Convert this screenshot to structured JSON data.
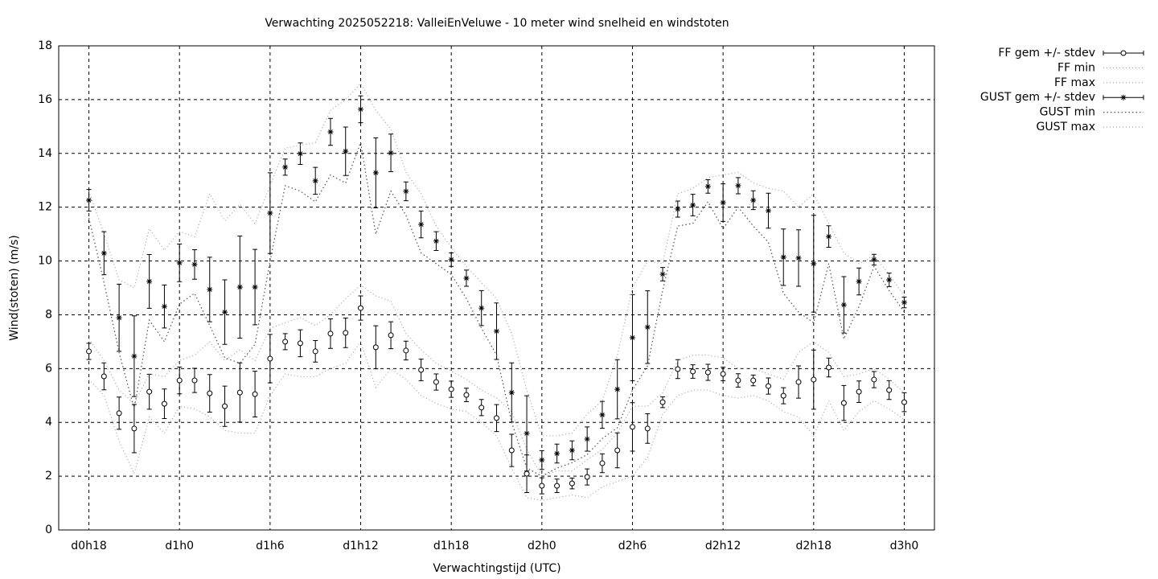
{
  "chart_data": {
    "type": "errorbar",
    "title": "Verwachting 2025052218: ValleiEnVeluwe - 10 meter wind snelheid en windstoten",
    "xlabel": "Verwachtingstijd (UTC)",
    "ylabel": "Wind(stoten) (m/s)",
    "x": [
      0,
      1,
      2,
      3,
      4,
      5,
      6,
      7,
      8,
      9,
      10,
      11,
      12,
      13,
      14,
      15,
      16,
      17,
      18,
      19,
      20,
      21,
      22,
      23,
      24,
      25,
      26,
      27,
      28,
      29,
      30,
      31,
      32,
      33,
      34,
      35,
      36,
      37,
      38,
      39,
      40,
      41,
      42,
      43,
      44,
      45,
      46,
      47,
      48,
      49,
      50,
      51,
      52,
      53,
      54
    ],
    "xlim": [
      -2,
      56
    ],
    "xticks": [
      {
        "value": 0,
        "label": "d0h18"
      },
      {
        "value": 6,
        "label": "d1h0"
      },
      {
        "value": 12,
        "label": "d1h6"
      },
      {
        "value": 18,
        "label": "d1h12"
      },
      {
        "value": 24,
        "label": "d1h18"
      },
      {
        "value": 30,
        "label": "d2h0"
      },
      {
        "value": 36,
        "label": "d2h6"
      },
      {
        "value": 42,
        "label": "d2h12"
      },
      {
        "value": 48,
        "label": "d2h18"
      },
      {
        "value": 54,
        "label": "d3h0"
      }
    ],
    "ylim": [
      0,
      18
    ],
    "yticks": [
      0,
      2,
      4,
      6,
      8,
      10,
      12,
      14,
      16,
      18
    ],
    "grid": true,
    "legend": "right",
    "series": [
      {
        "name": "FF gem +/- stdev",
        "kind": "errorbar",
        "marker": "circle",
        "color": "#000000",
        "values": [
          6.64,
          5.71,
          4.34,
          3.77,
          5.14,
          4.69,
          5.56,
          5.56,
          5.08,
          4.6,
          5.11,
          5.05,
          6.37,
          7.0,
          6.94,
          6.64,
          7.3,
          7.33,
          8.25,
          6.79,
          7.24,
          6.67,
          5.95,
          5.5,
          5.23,
          5.02,
          4.55,
          4.16,
          2.96,
          2.09,
          1.64,
          1.64,
          1.73,
          1.97,
          2.48,
          2.96,
          3.83,
          3.77,
          4.75,
          5.98,
          5.89,
          5.86,
          5.8,
          5.56,
          5.56,
          5.35,
          4.99,
          5.5,
          5.59,
          6.04,
          4.72,
          5.14,
          5.59,
          5.2,
          4.75
        ],
        "errors": [
          0.3,
          0.5,
          0.6,
          0.9,
          0.65,
          0.55,
          0.5,
          0.45,
          0.7,
          0.75,
          1.1,
          0.85,
          0.9,
          0.3,
          0.5,
          0.4,
          0.55,
          0.55,
          0.45,
          0.8,
          0.5,
          0.35,
          0.4,
          0.3,
          0.3,
          0.25,
          0.3,
          0.5,
          0.6,
          0.7,
          0.3,
          0.25,
          0.2,
          0.3,
          0.35,
          0.65,
          0.9,
          0.55,
          0.2,
          0.35,
          0.25,
          0.3,
          0.25,
          0.25,
          0.2,
          0.3,
          0.3,
          0.6,
          1.1,
          0.35,
          0.65,
          0.4,
          0.3,
          0.35,
          0.35
        ]
      },
      {
        "name": "FF min",
        "kind": "line",
        "color": "#a0a0a0",
        "dash": "1 3",
        "values": [
          5.6,
          5.0,
          3.3,
          2.1,
          4.2,
          3.6,
          4.6,
          4.5,
          4.2,
          3.7,
          3.6,
          3.6,
          5.0,
          5.8,
          5.7,
          5.7,
          6.0,
          6.2,
          7.0,
          5.3,
          6.0,
          5.6,
          5.0,
          4.7,
          4.5,
          4.4,
          4.0,
          3.5,
          2.3,
          1.2,
          1.1,
          1.2,
          1.3,
          1.2,
          1.6,
          1.8,
          2.0,
          2.7,
          4.3,
          5.0,
          5.2,
          5.2,
          5.0,
          4.9,
          5.0,
          4.8,
          4.4,
          4.2,
          3.5,
          4.8,
          3.7,
          4.4,
          4.8,
          4.5,
          4.1
        ]
      },
      {
        "name": "FF max",
        "kind": "line",
        "color": "#a0a0a0",
        "dash": "1 3",
        "values": [
          7.1,
          6.3,
          5.2,
          4.7,
          5.8,
          5.7,
          6.3,
          6.5,
          7.0,
          6.3,
          6.7,
          6.3,
          7.5,
          7.7,
          7.9,
          7.6,
          8.0,
          8.6,
          9.1,
          8.7,
          8.5,
          7.3,
          6.7,
          6.2,
          5.9,
          5.6,
          5.2,
          4.9,
          4.4,
          3.0,
          2.0,
          2.2,
          2.2,
          2.6,
          3.0,
          3.6,
          4.6,
          4.6,
          5.1,
          6.3,
          6.5,
          6.5,
          6.4,
          6.0,
          6.0,
          5.8,
          5.6,
          6.6,
          7.0,
          6.6,
          5.7,
          5.8,
          6.0,
          5.6,
          5.1
        ]
      },
      {
        "name": "GUST gem +/- stdev",
        "kind": "errorbar",
        "marker": "star",
        "color": "#000000",
        "values": [
          12.26,
          10.29,
          7.89,
          6.46,
          9.24,
          8.31,
          9.93,
          9.87,
          8.94,
          8.1,
          9.03,
          9.03,
          11.78,
          13.49,
          13.99,
          12.98,
          14.8,
          14.08,
          15.64,
          13.28,
          14.02,
          12.59,
          11.36,
          10.74,
          10.05,
          9.36,
          8.25,
          7.39,
          5.11,
          3.59,
          2.6,
          2.84,
          2.96,
          3.38,
          4.28,
          5.23,
          7.15,
          7.54,
          9.51,
          11.93,
          12.08,
          12.77,
          12.17,
          12.8,
          12.26,
          11.87,
          10.14,
          10.11,
          9.9,
          10.91,
          8.37,
          9.24,
          10.05,
          9.3,
          8.46
        ],
        "errors": [
          0.4,
          0.8,
          1.25,
          1.5,
          1.0,
          0.8,
          0.7,
          0.55,
          1.2,
          1.2,
          1.9,
          1.4,
          1.5,
          0.3,
          0.4,
          0.5,
          0.5,
          0.9,
          0.5,
          1.3,
          0.7,
          0.35,
          0.5,
          0.35,
          0.25,
          0.3,
          0.65,
          1.05,
          1.1,
          1.4,
          0.35,
          0.35,
          0.35,
          0.45,
          0.5,
          1.1,
          1.6,
          1.35,
          0.25,
          0.3,
          0.4,
          0.25,
          0.7,
          0.3,
          0.35,
          0.65,
          1.05,
          1.05,
          1.8,
          0.4,
          1.05,
          0.5,
          0.2,
          0.25,
          0.2
        ]
      },
      {
        "name": "GUST min",
        "kind": "line",
        "color": "#505050",
        "dash": "1.5 3",
        "values": [
          11.6,
          9.2,
          6.6,
          4.5,
          7.8,
          7.0,
          8.4,
          8.8,
          7.6,
          6.4,
          6.2,
          6.9,
          10.0,
          12.8,
          12.6,
          12.2,
          13.2,
          12.9,
          14.4,
          11.0,
          12.6,
          11.7,
          10.3,
          9.9,
          9.5,
          8.6,
          7.5,
          6.5,
          4.0,
          2.3,
          2.0,
          2.3,
          2.5,
          2.8,
          3.4,
          3.8,
          5.2,
          6.1,
          8.9,
          11.3,
          11.4,
          12.2,
          11.2,
          12.0,
          11.3,
          10.7,
          8.8,
          8.1,
          7.7,
          9.9,
          7.1,
          8.3,
          9.8,
          8.9,
          8.1
        ]
      },
      {
        "name": "GUST max",
        "kind": "line",
        "color": "#a0a0a0",
        "dash": "1 3",
        "values": [
          12.6,
          11.0,
          9.3,
          9.0,
          11.2,
          10.4,
          11.1,
          10.9,
          12.5,
          11.5,
          12.1,
          11.4,
          12.8,
          14.2,
          14.3,
          14.4,
          15.6,
          16.0,
          16.6,
          15.6,
          14.9,
          13.3,
          12.5,
          11.3,
          10.5,
          9.8,
          9.2,
          8.6,
          7.3,
          5.2,
          3.5,
          3.5,
          3.6,
          4.3,
          4.8,
          6.5,
          9.0,
          10.0,
          9.9,
          12.5,
          12.7,
          13.1,
          13.2,
          13.3,
          12.9,
          12.7,
          12.6,
          12.0,
          12.5,
          11.4,
          10.3,
          9.9,
          10.2,
          9.5,
          8.7
        ]
      }
    ]
  }
}
